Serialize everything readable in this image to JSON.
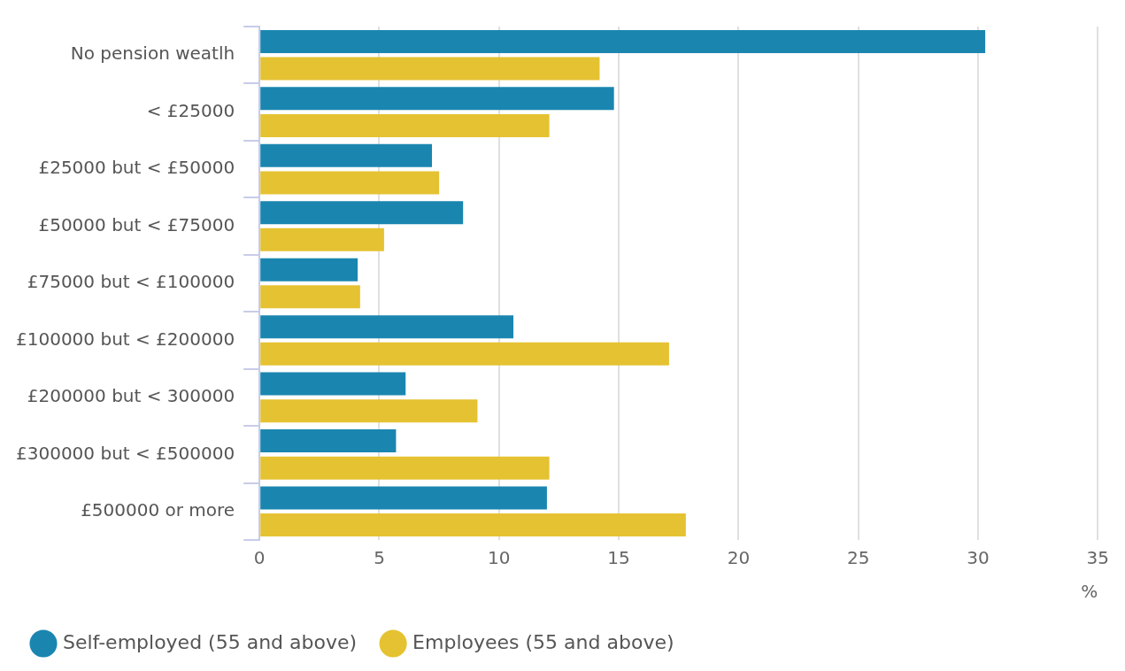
{
  "chart_data": {
    "type": "bar",
    "orientation": "horizontal",
    "xlabel": "%",
    "categories": [
      "No pension weatlh",
      "< £25000",
      "£25000 but < £50000",
      "£50000 but < £75000",
      "£75000 but < £100000",
      "£100000 but < £200000",
      "£200000 but < 300000",
      "£300000 but < £500000",
      "£500000 or more"
    ],
    "series": [
      {
        "name": "Self-employed (55 and above)",
        "color": "#1a86b0",
        "values": [
          30.3,
          14.8,
          7.2,
          8.5,
          4.1,
          10.6,
          6.1,
          5.7,
          12.0
        ]
      },
      {
        "name": "Employees (55 and above)",
        "color": "#e5c232",
        "values": [
          14.2,
          12.1,
          7.5,
          5.2,
          4.2,
          17.1,
          9.1,
          12.1,
          17.8
        ]
      }
    ],
    "xlim": [
      0,
      35
    ],
    "xticks": [
      0,
      5,
      10,
      15,
      20,
      25,
      30,
      35
    ],
    "grid": "x",
    "legend": "bottom left"
  }
}
